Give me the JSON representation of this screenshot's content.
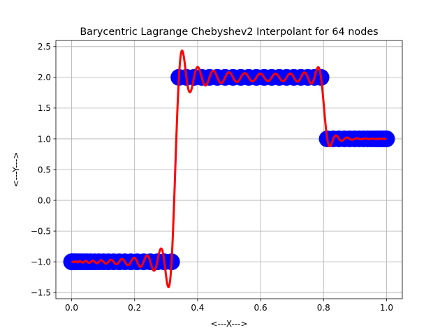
{
  "chart_data": {
    "type": "scatter",
    "title": "Barycentric Lagrange Chebyshev2 Interpolant for 64 nodes",
    "xlabel": "<---X--->",
    "ylabel": "<---Y--->",
    "xlim": [
      -0.05,
      1.05
    ],
    "ylim": [
      -1.6,
      2.6
    ],
    "xticks": [
      0.0,
      0.2,
      0.4,
      0.6,
      0.8,
      1.0
    ],
    "xtick_labels": [
      "0.0",
      "0.2",
      "0.4",
      "0.6",
      "0.8",
      "1.0"
    ],
    "yticks": [
      -1.5,
      -1.0,
      -0.5,
      0.0,
      0.5,
      1.0,
      1.5,
      2.0,
      2.5
    ],
    "ytick_labels": [
      "−1.5",
      "−1.0",
      "−0.5",
      "0.0",
      "0.5",
      "1.0",
      "1.5",
      "2.0",
      "2.5"
    ],
    "grid": true,
    "colors": {
      "nodes": "#0000ff",
      "interpolant": "#ff0000",
      "grid": "#b0b0b0"
    },
    "series": [
      {
        "kind": "nodes",
        "function": "step: -1 for x<1/3, 2 for 1/3<=x<0.8, 1 for x>=0.8",
        "count": 64,
        "x_range": [
          0.0,
          1.0
        ]
      },
      {
        "kind": "interpolant",
        "breakpoints": [
          0.3333,
          0.8
        ],
        "levels": [
          -1.0,
          2.0,
          1.0
        ],
        "x_range": [
          0.0,
          1.0
        ]
      }
    ]
  }
}
